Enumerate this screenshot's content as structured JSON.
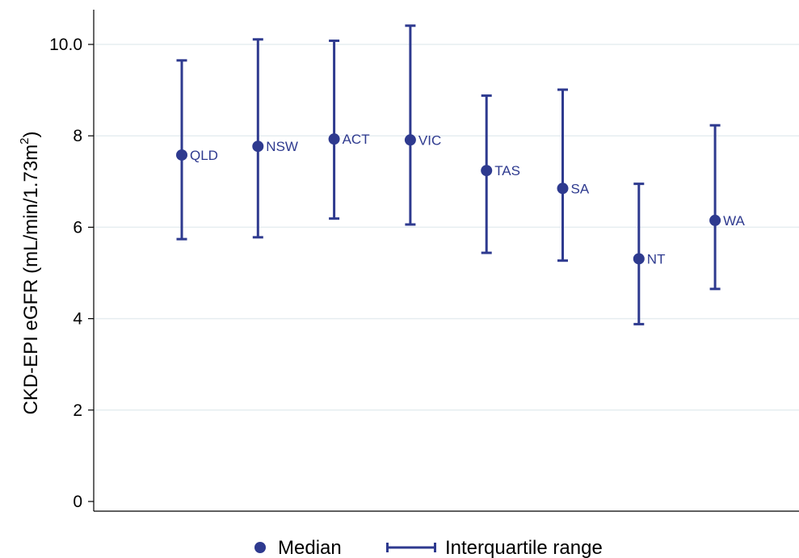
{
  "chart_data": {
    "type": "scatter",
    "categories": [
      "QLD",
      "NSW",
      "ACT",
      "VIC",
      "TAS",
      "SA",
      "NT",
      "WA"
    ],
    "series": [
      {
        "name": "Median",
        "values": [
          7.58,
          7.77,
          7.93,
          7.91,
          7.24,
          6.85,
          5.31,
          6.15
        ]
      },
      {
        "name": "Interquartile range",
        "low": [
          5.74,
          5.78,
          6.19,
          6.06,
          5.44,
          5.27,
          3.88,
          4.65
        ],
        "high": [
          9.65,
          10.11,
          10.08,
          10.41,
          8.88,
          9.01,
          6.95,
          8.23
        ]
      }
    ],
    "ylabel": "CKD-EPI eGFR (mL/min/1.73m",
    "ylabel_superscript": "2",
    "ylabel_close": ")",
    "yticks": [
      "0",
      "2",
      "4",
      "6",
      "8",
      "10.0"
    ],
    "ylim": [
      0,
      10.7
    ],
    "grid": true,
    "legend_position": "bottom",
    "colors": {
      "series": "#2e3a8f",
      "grid": "#e6edf0",
      "axis": "#000000"
    }
  },
  "legend": {
    "median_label": "Median",
    "iqr_label": "Interquartile range"
  }
}
